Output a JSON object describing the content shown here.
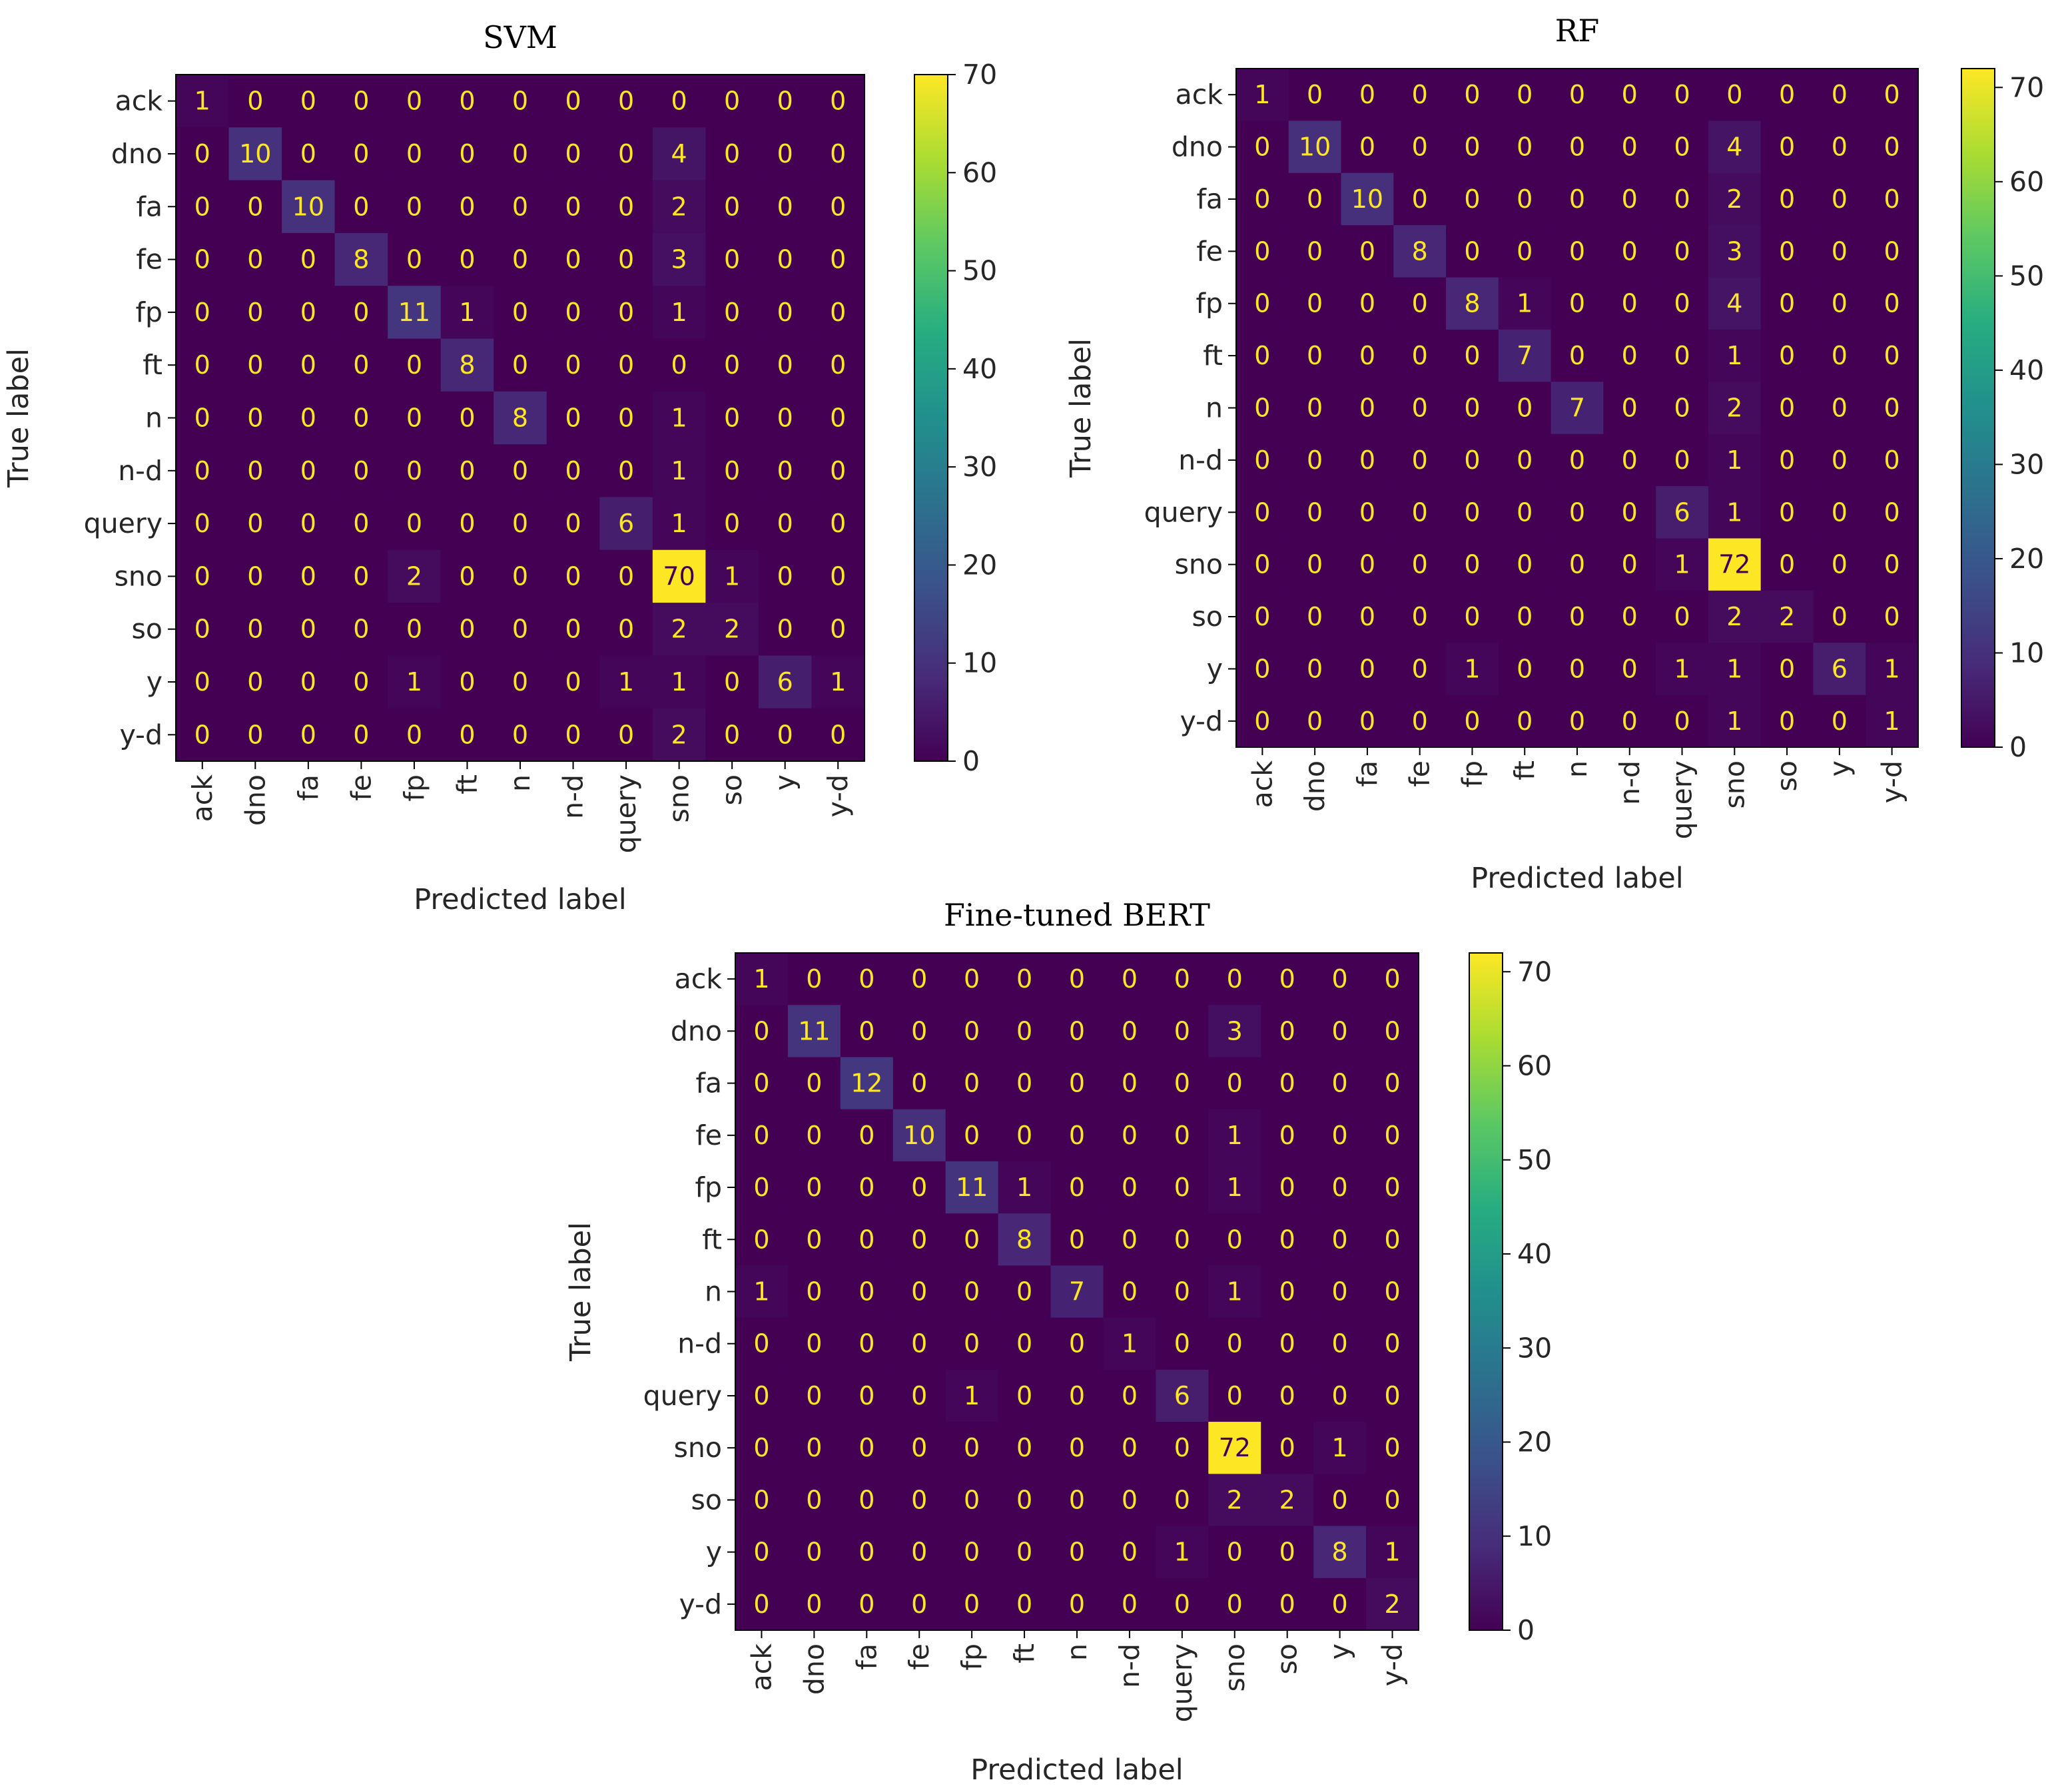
{
  "chart_data": [
    {
      "type": "heatmap",
      "title": "SVM",
      "xlabel": "Predicted label",
      "ylabel": "True label",
      "labels": [
        "ack",
        "dno",
        "fa",
        "fe",
        "fp",
        "ft",
        "n",
        "n-d",
        "query",
        "sno",
        "so",
        "y",
        "y-d"
      ],
      "matrix": [
        [
          1,
          0,
          0,
          0,
          0,
          0,
          0,
          0,
          0,
          0,
          0,
          0,
          0
        ],
        [
          0,
          10,
          0,
          0,
          0,
          0,
          0,
          0,
          0,
          4,
          0,
          0,
          0
        ],
        [
          0,
          0,
          10,
          0,
          0,
          0,
          0,
          0,
          0,
          2,
          0,
          0,
          0
        ],
        [
          0,
          0,
          0,
          8,
          0,
          0,
          0,
          0,
          0,
          3,
          0,
          0,
          0
        ],
        [
          0,
          0,
          0,
          0,
          11,
          1,
          0,
          0,
          0,
          1,
          0,
          0,
          0
        ],
        [
          0,
          0,
          0,
          0,
          0,
          8,
          0,
          0,
          0,
          0,
          0,
          0,
          0
        ],
        [
          0,
          0,
          0,
          0,
          0,
          0,
          8,
          0,
          0,
          1,
          0,
          0,
          0
        ],
        [
          0,
          0,
          0,
          0,
          0,
          0,
          0,
          0,
          0,
          1,
          0,
          0,
          0
        ],
        [
          0,
          0,
          0,
          0,
          0,
          0,
          0,
          0,
          6,
          1,
          0,
          0,
          0
        ],
        [
          0,
          0,
          0,
          0,
          2,
          0,
          0,
          0,
          0,
          70,
          1,
          0,
          0
        ],
        [
          0,
          0,
          0,
          0,
          0,
          0,
          0,
          0,
          0,
          2,
          2,
          0,
          0
        ],
        [
          0,
          0,
          0,
          0,
          1,
          0,
          0,
          0,
          1,
          1,
          0,
          6,
          1
        ],
        [
          0,
          0,
          0,
          0,
          0,
          0,
          0,
          0,
          0,
          2,
          0,
          0,
          0
        ]
      ],
      "colorbar": {
        "min": 0,
        "max": 70,
        "ticks": [
          0,
          10,
          20,
          30,
          40,
          50,
          60,
          70
        ]
      }
    },
    {
      "type": "heatmap",
      "title": "RF",
      "xlabel": "Predicted label",
      "ylabel": "True label",
      "labels": [
        "ack",
        "dno",
        "fa",
        "fe",
        "fp",
        "ft",
        "n",
        "n-d",
        "query",
        "sno",
        "so",
        "y",
        "y-d"
      ],
      "matrix": [
        [
          1,
          0,
          0,
          0,
          0,
          0,
          0,
          0,
          0,
          0,
          0,
          0,
          0
        ],
        [
          0,
          10,
          0,
          0,
          0,
          0,
          0,
          0,
          0,
          4,
          0,
          0,
          0
        ],
        [
          0,
          0,
          10,
          0,
          0,
          0,
          0,
          0,
          0,
          2,
          0,
          0,
          0
        ],
        [
          0,
          0,
          0,
          8,
          0,
          0,
          0,
          0,
          0,
          3,
          0,
          0,
          0
        ],
        [
          0,
          0,
          0,
          0,
          8,
          1,
          0,
          0,
          0,
          4,
          0,
          0,
          0
        ],
        [
          0,
          0,
          0,
          0,
          0,
          7,
          0,
          0,
          0,
          1,
          0,
          0,
          0
        ],
        [
          0,
          0,
          0,
          0,
          0,
          0,
          7,
          0,
          0,
          2,
          0,
          0,
          0
        ],
        [
          0,
          0,
          0,
          0,
          0,
          0,
          0,
          0,
          0,
          1,
          0,
          0,
          0
        ],
        [
          0,
          0,
          0,
          0,
          0,
          0,
          0,
          0,
          6,
          1,
          0,
          0,
          0
        ],
        [
          0,
          0,
          0,
          0,
          0,
          0,
          0,
          0,
          1,
          72,
          0,
          0,
          0
        ],
        [
          0,
          0,
          0,
          0,
          0,
          0,
          0,
          0,
          0,
          2,
          2,
          0,
          0
        ],
        [
          0,
          0,
          0,
          0,
          1,
          0,
          0,
          0,
          1,
          1,
          0,
          6,
          1
        ],
        [
          0,
          0,
          0,
          0,
          0,
          0,
          0,
          0,
          0,
          1,
          0,
          0,
          1
        ]
      ],
      "colorbar": {
        "min": 0,
        "max": 72,
        "ticks": [
          0,
          10,
          20,
          30,
          40,
          50,
          60,
          70
        ]
      }
    },
    {
      "type": "heatmap",
      "title": "Fine-tuned BERT",
      "xlabel": "Predicted label",
      "ylabel": "True label",
      "labels": [
        "ack",
        "dno",
        "fa",
        "fe",
        "fp",
        "ft",
        "n",
        "n-d",
        "query",
        "sno",
        "so",
        "y",
        "y-d"
      ],
      "matrix": [
        [
          1,
          0,
          0,
          0,
          0,
          0,
          0,
          0,
          0,
          0,
          0,
          0,
          0
        ],
        [
          0,
          11,
          0,
          0,
          0,
          0,
          0,
          0,
          0,
          3,
          0,
          0,
          0
        ],
        [
          0,
          0,
          12,
          0,
          0,
          0,
          0,
          0,
          0,
          0,
          0,
          0,
          0
        ],
        [
          0,
          0,
          0,
          10,
          0,
          0,
          0,
          0,
          0,
          1,
          0,
          0,
          0
        ],
        [
          0,
          0,
          0,
          0,
          11,
          1,
          0,
          0,
          0,
          1,
          0,
          0,
          0
        ],
        [
          0,
          0,
          0,
          0,
          0,
          8,
          0,
          0,
          0,
          0,
          0,
          0,
          0
        ],
        [
          1,
          0,
          0,
          0,
          0,
          0,
          7,
          0,
          0,
          1,
          0,
          0,
          0
        ],
        [
          0,
          0,
          0,
          0,
          0,
          0,
          0,
          1,
          0,
          0,
          0,
          0,
          0
        ],
        [
          0,
          0,
          0,
          0,
          1,
          0,
          0,
          0,
          6,
          0,
          0,
          0,
          0
        ],
        [
          0,
          0,
          0,
          0,
          0,
          0,
          0,
          0,
          0,
          72,
          0,
          1,
          0
        ],
        [
          0,
          0,
          0,
          0,
          0,
          0,
          0,
          0,
          0,
          2,
          2,
          0,
          0
        ],
        [
          0,
          0,
          0,
          0,
          0,
          0,
          0,
          0,
          1,
          0,
          0,
          8,
          1
        ],
        [
          0,
          0,
          0,
          0,
          0,
          0,
          0,
          0,
          0,
          0,
          0,
          0,
          2
        ]
      ],
      "colorbar": {
        "min": 0,
        "max": 72,
        "ticks": [
          0,
          10,
          20,
          30,
          40,
          50,
          60,
          70
        ]
      }
    }
  ]
}
